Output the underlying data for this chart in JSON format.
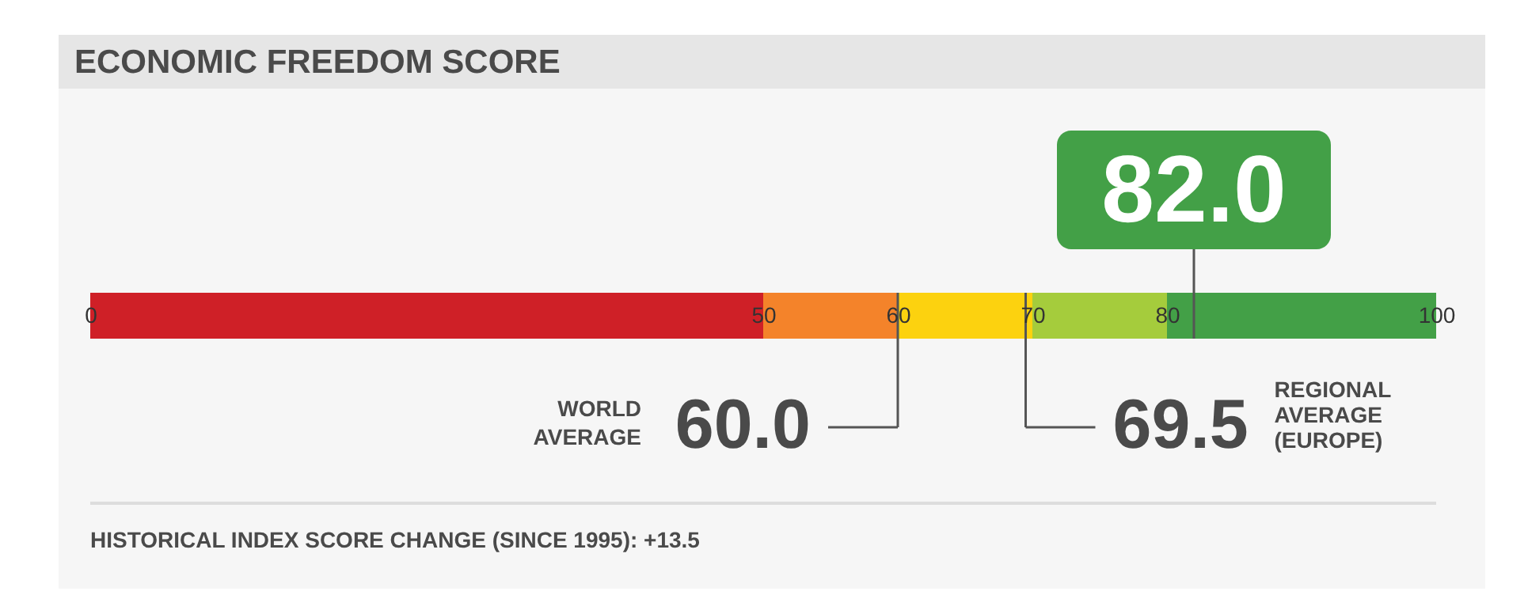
{
  "chart_data": {
    "type": "bar",
    "orientation": "horizontal",
    "stacked": true,
    "title": "ECONOMIC FREEDOM SCORE",
    "categories": [
      null
    ],
    "xlim": [
      0,
      100
    ],
    "xticks": [
      0,
      50,
      60,
      70,
      80,
      100
    ],
    "series": [
      {
        "color": "#cf2027",
        "values": [
          50
        ]
      },
      {
        "color": "#f4832a",
        "values": [
          10
        ]
      },
      {
        "color": "#fcd20f",
        "values": [
          10
        ]
      },
      {
        "color": "#a5cc3c",
        "values": [
          10
        ]
      },
      {
        "color": "#43a047",
        "values": [
          20
        ]
      }
    ],
    "ref_lines": [
      {
        "axis": "x",
        "value": 82.0,
        "label": "82.0"
      },
      {
        "axis": "x",
        "value": 60.0,
        "label": "60.0"
      },
      {
        "axis": "x",
        "value": 69.5,
        "label": "69.5"
      }
    ],
    "annotations": [
      "WORLD AVERAGE",
      "REGIONAL AVERAGE (EUROPE)",
      "HISTORICAL INDEX SCORE CHANGE (SINCE 1995): +13.5"
    ]
  }
}
